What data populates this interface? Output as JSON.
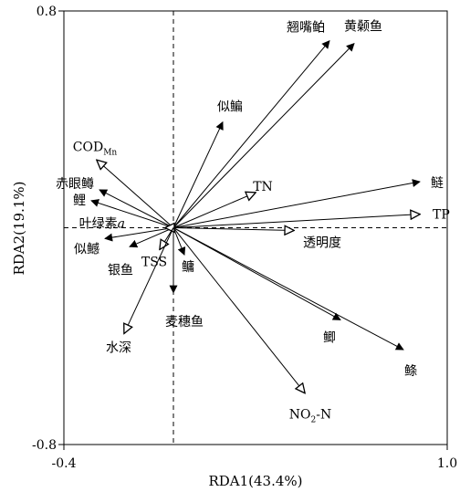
{
  "chart_data": {
    "type": "scatter",
    "subtype": "rda-biplot",
    "title": "",
    "xlabel": "RDA1(43.4%)",
    "ylabel": "RDA2(19.1%)",
    "xlim": [
      -0.4,
      1.0
    ],
    "ylim": [
      -0.8,
      0.8
    ],
    "x_ticks": [
      "-0.4",
      "1.0"
    ],
    "y_ticks": [
      "0.8",
      "-0.8"
    ],
    "grid": false,
    "reference_lines": "dashed lines at x=0 and y=0",
    "legend": "none",
    "series": [
      {
        "name": "",
        "style": "solid filled arrowheads",
        "vectors": [
          {
            "label": "翘嘴鲌",
            "x": 0.57,
            "y": 0.69
          },
          {
            "label": "黄颡鱼",
            "x": 0.66,
            "y": 0.68
          },
          {
            "label": "似鳊",
            "x": 0.18,
            "y": 0.39
          },
          {
            "label": "鲢",
            "x": 0.9,
            "y": 0.17
          },
          {
            "label": "鲤",
            "x": -0.3,
            "y": 0.1
          },
          {
            "label": "赤眼鳟",
            "x": -0.27,
            "y": 0.14
          },
          {
            "label": "似鳡",
            "x": -0.25,
            "y": -0.04
          },
          {
            "label": "银鱼",
            "x": -0.16,
            "y": -0.07
          },
          {
            "label": "鳙",
            "x": 0.04,
            "y": -0.1
          },
          {
            "label": "麦穗鱼",
            "x": 0.0,
            "y": -0.24
          },
          {
            "label": "鲫",
            "x": 0.61,
            "y": -0.34
          },
          {
            "label": "鲦",
            "x": 0.84,
            "y": -0.45
          }
        ]
      },
      {
        "name": "",
        "style": "hollow arrowheads",
        "vectors": [
          {
            "label_main": "COD",
            "label_sub": "Mn",
            "x": -0.28,
            "y": 0.25
          },
          {
            "label": "TN",
            "x": 0.3,
            "y": 0.13
          },
          {
            "label": "TP",
            "x": 0.9,
            "y": 0.05
          },
          {
            "label": "透明度",
            "x": 0.44,
            "y": -0.01
          },
          {
            "label": "叶绿素a",
            "x": -0.03,
            "y": 0.0
          },
          {
            "label": "TSS",
            "x": -0.05,
            "y": -0.08
          },
          {
            "label": "水深",
            "x": -0.18,
            "y": -0.39
          },
          {
            "label_pre": "NO",
            "label_sub": "2",
            "label_post": "-N",
            "x": 0.48,
            "y": -0.61
          }
        ]
      }
    ]
  }
}
